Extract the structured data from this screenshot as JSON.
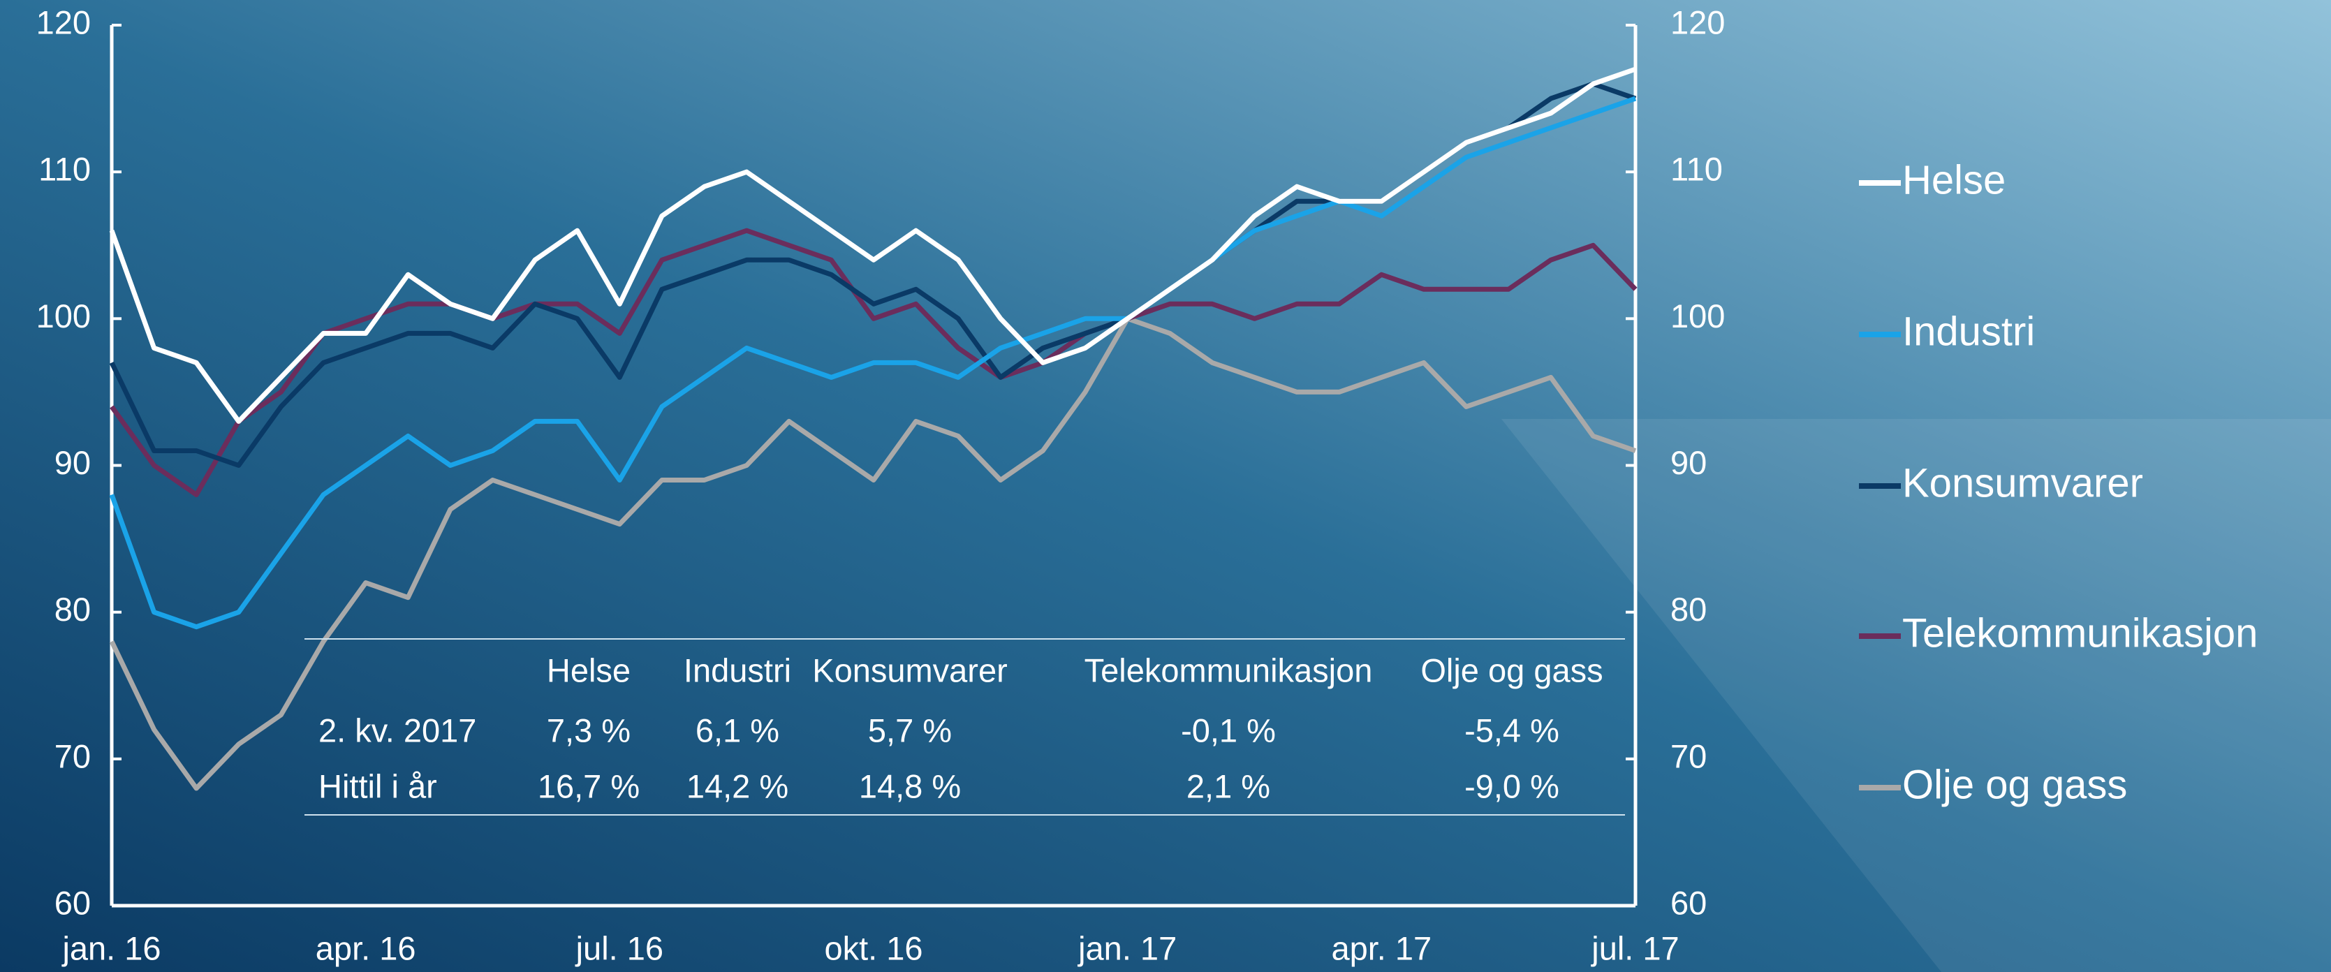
{
  "chart_data": {
    "type": "line",
    "categories": [
      "jan. 16",
      null,
      null,
      null,
      null,
      null,
      "apr. 16",
      null,
      null,
      null,
      null,
      null,
      "jul. 16",
      null,
      null,
      null,
      null,
      null,
      "okt. 16",
      null,
      null,
      null,
      null,
      null,
      "jan. 17",
      null,
      null,
      null,
      null,
      null,
      "apr. 17",
      null,
      null,
      null,
      null,
      null,
      "jul. 17"
    ],
    "series": [
      {
        "name": "Helse",
        "color": "#ffffff",
        "values": [
          106,
          98,
          97,
          93,
          96,
          99,
          99,
          103,
          101,
          100,
          104,
          106,
          101,
          107,
          109,
          110,
          108,
          106,
          104,
          106,
          104,
          100,
          97,
          98,
          100,
          102,
          104,
          107,
          109,
          108,
          108,
          110,
          112,
          113,
          114,
          116,
          117
        ]
      },
      {
        "name": "Industri",
        "color": "#1aa3e8",
        "values": [
          88,
          80,
          79,
          80,
          84,
          88,
          90,
          92,
          90,
          91,
          93,
          93,
          89,
          94,
          96,
          98,
          97,
          96,
          97,
          97,
          96,
          98,
          99,
          100,
          100,
          102,
          104,
          106,
          107,
          108,
          107,
          109,
          111,
          112,
          113,
          114,
          115
        ]
      },
      {
        "name": "Konsumvarer",
        "color": "#0a3a66",
        "values": [
          97,
          91,
          91,
          90,
          94,
          97,
          98,
          99,
          99,
          98,
          101,
          100,
          96,
          102,
          103,
          104,
          104,
          103,
          101,
          102,
          100,
          96,
          98,
          99,
          100,
          102,
          104,
          106,
          108,
          108,
          108,
          110,
          112,
          113,
          115,
          116,
          115
        ]
      },
      {
        "name": "Telekommunikasjon",
        "color": "#6b2d5c",
        "values": [
          94,
          90,
          88,
          93,
          95,
          99,
          100,
          101,
          101,
          100,
          101,
          101,
          99,
          104,
          105,
          106,
          105,
          104,
          100,
          101,
          98,
          96,
          97,
          99,
          100,
          101,
          101,
          100,
          101,
          101,
          103,
          102,
          102,
          102,
          104,
          105,
          102
        ]
      },
      {
        "name": "Olje og gass",
        "color": "#a9a9a9",
        "values": [
          78,
          72,
          68,
          71,
          73,
          78,
          82,
          81,
          87,
          89,
          88,
          87,
          86,
          89,
          89,
          90,
          93,
          91,
          89,
          93,
          92,
          89,
          91,
          95,
          100,
          99,
          97,
          96,
          95,
          95,
          96,
          97,
          94,
          95,
          96,
          92,
          91
        ]
      }
    ],
    "ylim": [
      60,
      120
    ],
    "yticks": [
      60,
      70,
      80,
      90,
      100,
      110,
      120
    ],
    "y2lim": [
      60,
      120
    ],
    "y2ticks": [
      60,
      70,
      80,
      90,
      100,
      110,
      120
    ],
    "legend": "right",
    "table": {
      "columns": [
        "Helse",
        "Industri",
        "Konsumvarer",
        "Telekommunikasjon",
        "Olje og gass"
      ],
      "rows": [
        {
          "label": "2. kv. 2017",
          "values": [
            "7,3 %",
            "6,1 %",
            "5,7 %",
            "-0,1 %",
            "-5,4 %"
          ]
        },
        {
          "label": "Hittil i år",
          "values": [
            "16,7 %",
            "14,2 %",
            "14,8 %",
            "2,1 %",
            "-9,0 %"
          ]
        }
      ]
    }
  }
}
